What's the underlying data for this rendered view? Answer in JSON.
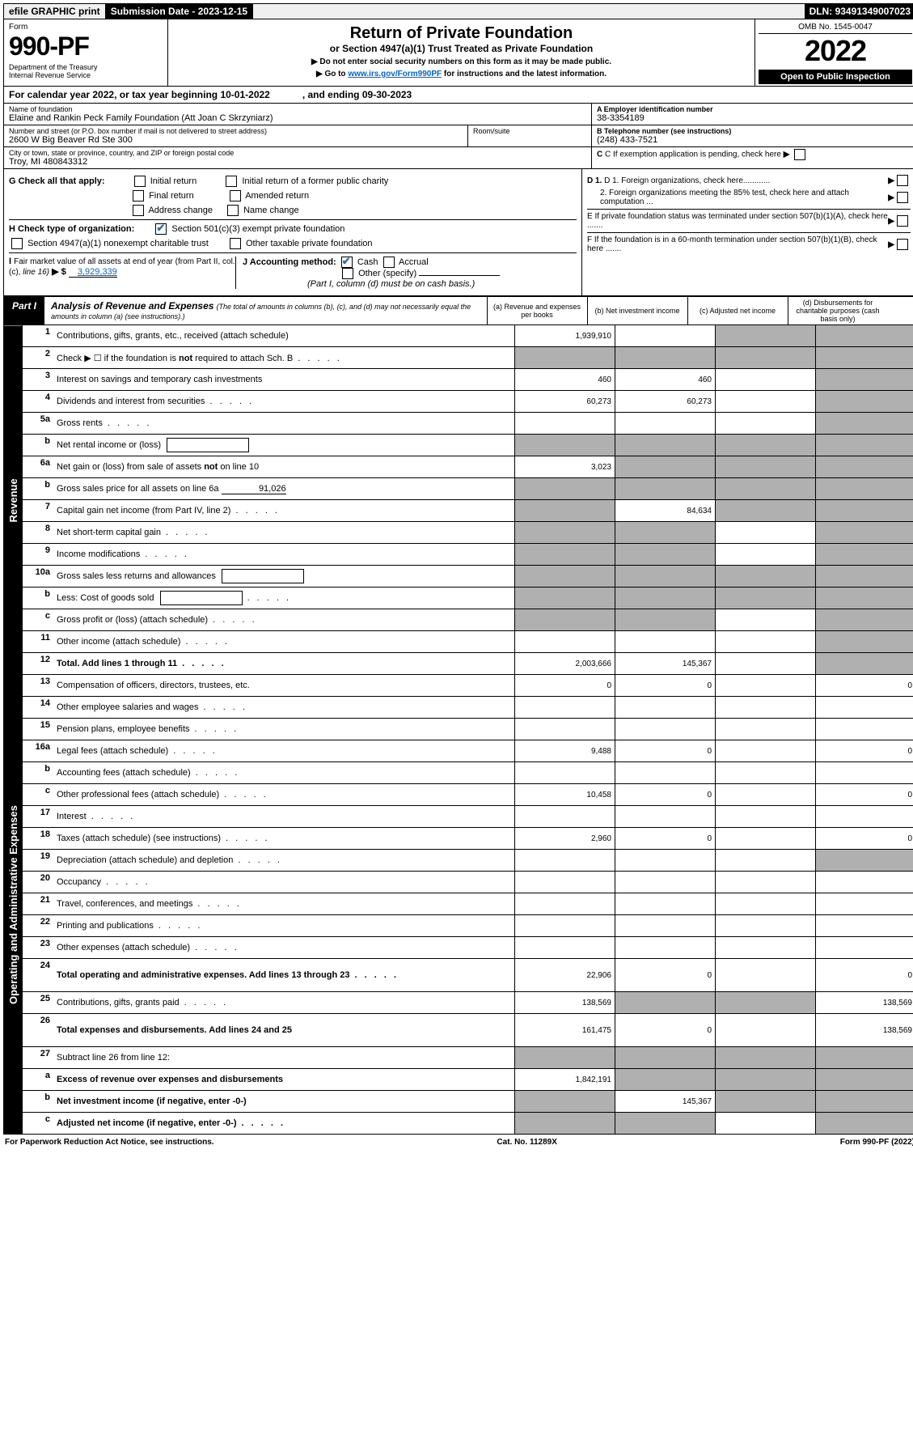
{
  "topbar": {
    "efile": "efile GRAPHIC print",
    "subdate_label": "Submission Date - ",
    "subdate": "2023-12-15",
    "dln_label": "DLN: ",
    "dln": "93491349007023"
  },
  "header": {
    "form_word": "Form",
    "form_no": "990-PF",
    "dept": "Department of the Treasury\nInternal Revenue Service",
    "title": "Return of Private Foundation",
    "subtitle": "or Section 4947(a)(1) Trust Treated as Private Foundation",
    "instr1": "▶ Do not enter social security numbers on this form as it may be made public.",
    "instr2_pre": "▶ Go to ",
    "instr2_link": "www.irs.gov/Form990PF",
    "instr2_post": " for instructions and the latest information.",
    "omb": "OMB No. 1545-0047",
    "year": "2022",
    "open": "Open to Public Inspection"
  },
  "calendar": {
    "pre": "For calendar year 2022, or tax year beginning ",
    "begin": "10-01-2022",
    "mid": ", and ending ",
    "end": "09-30-2023"
  },
  "entity": {
    "name_label": "Name of foundation",
    "name": "Elaine and Rankin Peck Family Foundation (Att Joan C Skrzyniarz)",
    "addr_label": "Number and street (or P.O. box number if mail is not delivered to street address)",
    "addr": "2600 W Big Beaver Rd Ste 300",
    "room_label": "Room/suite",
    "city_label": "City or town, state or province, country, and ZIP or foreign postal code",
    "city": "Troy, MI  480843312",
    "ein_label": "A Employer identification number",
    "ein": "38-3354189",
    "tel_label": "B Telephone number (see instructions)",
    "tel": "(248) 433-7521",
    "c": "C If exemption application is pending, check here",
    "d1": "D 1. Foreign organizations, check here............",
    "d2": "2. Foreign organizations meeting the 85% test, check here and attach computation ...",
    "e": "E  If private foundation status was terminated under section 507(b)(1)(A), check here .......",
    "f": "F  If the foundation is in a 60-month termination under section 507(b)(1)(B), check here .......",
    "g_label": "G Check all that apply:",
    "g_opts": [
      "Initial return",
      "Final return",
      "Address change",
      "Initial return of a former public charity",
      "Amended return",
      "Name change"
    ],
    "h_label": "H Check type of organization:",
    "h1": "Section 501(c)(3) exempt private foundation",
    "h2": "Section 4947(a)(1) nonexempt charitable trust",
    "h3": "Other taxable private foundation",
    "i_label": "I Fair market value of all assets at end of year (from Part II, col. (c), line 16) ▶ $",
    "i_val": "3,929,339",
    "j_label": "J Accounting method:",
    "j_cash": "Cash",
    "j_accrual": "Accrual",
    "j_other": "Other (specify)",
    "j_note": "(Part I, column (d) must be on cash basis.)"
  },
  "part1": {
    "badge": "Part I",
    "title": "Analysis of Revenue and Expenses",
    "note": "(The total of amounts in columns (b), (c), and (d) may not necessarily equal the amounts in column (a) (see instructions).)",
    "cols": {
      "a": "(a) Revenue and expenses per books",
      "b": "(b) Net investment income",
      "c": "(c) Adjusted net income",
      "d": "(d) Disbursements for charitable purposes (cash basis only)"
    }
  },
  "side_labels": {
    "revenue": "Revenue",
    "expenses": "Operating and Administrative Expenses"
  },
  "rows": [
    {
      "n": "1",
      "desc": "Contributions, gifts, grants, etc., received (attach schedule)",
      "a": "1,939,910",
      "b": "",
      "c": "g",
      "d": "g"
    },
    {
      "n": "2",
      "desc": "Check ▶ ☐ if the foundation is not required to attach Sch. B",
      "a": "g",
      "b": "g",
      "c": "g",
      "d": "g",
      "dots": true
    },
    {
      "n": "3",
      "desc": "Interest on savings and temporary cash investments",
      "a": "460",
      "b": "460",
      "c": "",
      "d": "g"
    },
    {
      "n": "4",
      "desc": "Dividends and interest from securities",
      "a": "60,273",
      "b": "60,273",
      "c": "",
      "d": "g",
      "dots": true
    },
    {
      "n": "5a",
      "desc": "Gross rents",
      "a": "",
      "b": "",
      "c": "",
      "d": "g",
      "dots": true
    },
    {
      "n": "b",
      "desc": "Net rental income or (loss)",
      "a": "g",
      "b": "g",
      "c": "g",
      "d": "g",
      "box": true
    },
    {
      "n": "6a",
      "desc": "Net gain or (loss) from sale of assets not on line 10",
      "a": "3,023",
      "b": "g",
      "c": "g",
      "d": "g"
    },
    {
      "n": "b",
      "desc": "Gross sales price for all assets on line 6a",
      "a": "g",
      "b": "g",
      "c": "g",
      "d": "g",
      "inline": "91,026"
    },
    {
      "n": "7",
      "desc": "Capital gain net income (from Part IV, line 2)",
      "a": "g",
      "b": "84,634",
      "c": "g",
      "d": "g",
      "dots": true
    },
    {
      "n": "8",
      "desc": "Net short-term capital gain",
      "a": "g",
      "b": "g",
      "c": "",
      "d": "g",
      "dots": true
    },
    {
      "n": "9",
      "desc": "Income modifications",
      "a": "g",
      "b": "g",
      "c": "",
      "d": "g",
      "dots": true
    },
    {
      "n": "10a",
      "desc": "Gross sales less returns and allowances",
      "a": "g",
      "b": "g",
      "c": "g",
      "d": "g",
      "box": true
    },
    {
      "n": "b",
      "desc": "Less: Cost of goods sold",
      "a": "g",
      "b": "g",
      "c": "g",
      "d": "g",
      "box": true,
      "dots": true
    },
    {
      "n": "c",
      "desc": "Gross profit or (loss) (attach schedule)",
      "a": "g",
      "b": "g",
      "c": "",
      "d": "g",
      "dots": true
    },
    {
      "n": "11",
      "desc": "Other income (attach schedule)",
      "a": "",
      "b": "",
      "c": "",
      "d": "g",
      "dots": true
    },
    {
      "n": "12",
      "desc": "Total. Add lines 1 through 11",
      "a": "2,003,666",
      "b": "145,367",
      "c": "",
      "d": "g",
      "bold": true,
      "dots": true
    },
    {
      "n": "13",
      "desc": "Compensation of officers, directors, trustees, etc.",
      "a": "0",
      "b": "0",
      "c": "",
      "d": "0"
    },
    {
      "n": "14",
      "desc": "Other employee salaries and wages",
      "a": "",
      "b": "",
      "c": "",
      "d": "",
      "dots": true
    },
    {
      "n": "15",
      "desc": "Pension plans, employee benefits",
      "a": "",
      "b": "",
      "c": "",
      "d": "",
      "dots": true
    },
    {
      "n": "16a",
      "desc": "Legal fees (attach schedule)",
      "a": "9,488",
      "b": "0",
      "c": "",
      "d": "0",
      "dots": true
    },
    {
      "n": "b",
      "desc": "Accounting fees (attach schedule)",
      "a": "",
      "b": "",
      "c": "",
      "d": "",
      "dots": true
    },
    {
      "n": "c",
      "desc": "Other professional fees (attach schedule)",
      "a": "10,458",
      "b": "0",
      "c": "",
      "d": "0",
      "dots": true
    },
    {
      "n": "17",
      "desc": "Interest",
      "a": "",
      "b": "",
      "c": "",
      "d": "",
      "dots": true
    },
    {
      "n": "18",
      "desc": "Taxes (attach schedule) (see instructions)",
      "a": "2,960",
      "b": "0",
      "c": "",
      "d": "0",
      "dots": true
    },
    {
      "n": "19",
      "desc": "Depreciation (attach schedule) and depletion",
      "a": "",
      "b": "",
      "c": "",
      "d": "g",
      "dots": true
    },
    {
      "n": "20",
      "desc": "Occupancy",
      "a": "",
      "b": "",
      "c": "",
      "d": "",
      "dots": true
    },
    {
      "n": "21",
      "desc": "Travel, conferences, and meetings",
      "a": "",
      "b": "",
      "c": "",
      "d": "",
      "dots": true
    },
    {
      "n": "22",
      "desc": "Printing and publications",
      "a": "",
      "b": "",
      "c": "",
      "d": "",
      "dots": true
    },
    {
      "n": "23",
      "desc": "Other expenses (attach schedule)",
      "a": "",
      "b": "",
      "c": "",
      "d": "",
      "dots": true
    },
    {
      "n": "24",
      "desc": "Total operating and administrative expenses. Add lines 13 through 23",
      "a": "22,906",
      "b": "0",
      "c": "",
      "d": "0",
      "bold": true,
      "dots": true,
      "tall": true
    },
    {
      "n": "25",
      "desc": "Contributions, gifts, grants paid",
      "a": "138,569",
      "b": "g",
      "c": "g",
      "d": "138,569",
      "dots": true
    },
    {
      "n": "26",
      "desc": "Total expenses and disbursements. Add lines 24 and 25",
      "a": "161,475",
      "b": "0",
      "c": "",
      "d": "138,569",
      "bold": true,
      "tall": true
    },
    {
      "n": "27",
      "desc": "Subtract line 26 from line 12:",
      "a": "g",
      "b": "g",
      "c": "g",
      "d": "g"
    },
    {
      "n": "a",
      "desc": "Excess of revenue over expenses and disbursements",
      "a": "1,842,191",
      "b": "g",
      "c": "g",
      "d": "g",
      "bold": true
    },
    {
      "n": "b",
      "desc": "Net investment income (if negative, enter -0-)",
      "a": "g",
      "b": "145,367",
      "c": "g",
      "d": "g",
      "bold": true
    },
    {
      "n": "c",
      "desc": "Adjusted net income (if negative, enter -0-)",
      "a": "g",
      "b": "g",
      "c": "",
      "d": "g",
      "bold": true,
      "dots": true
    }
  ],
  "footer": {
    "left": "For Paperwork Reduction Act Notice, see instructions.",
    "mid": "Cat. No. 11289X",
    "right": "Form 990-PF (2022)"
  },
  "colors": {
    "grey": "#b0b0b0",
    "link": "#0066cc"
  }
}
